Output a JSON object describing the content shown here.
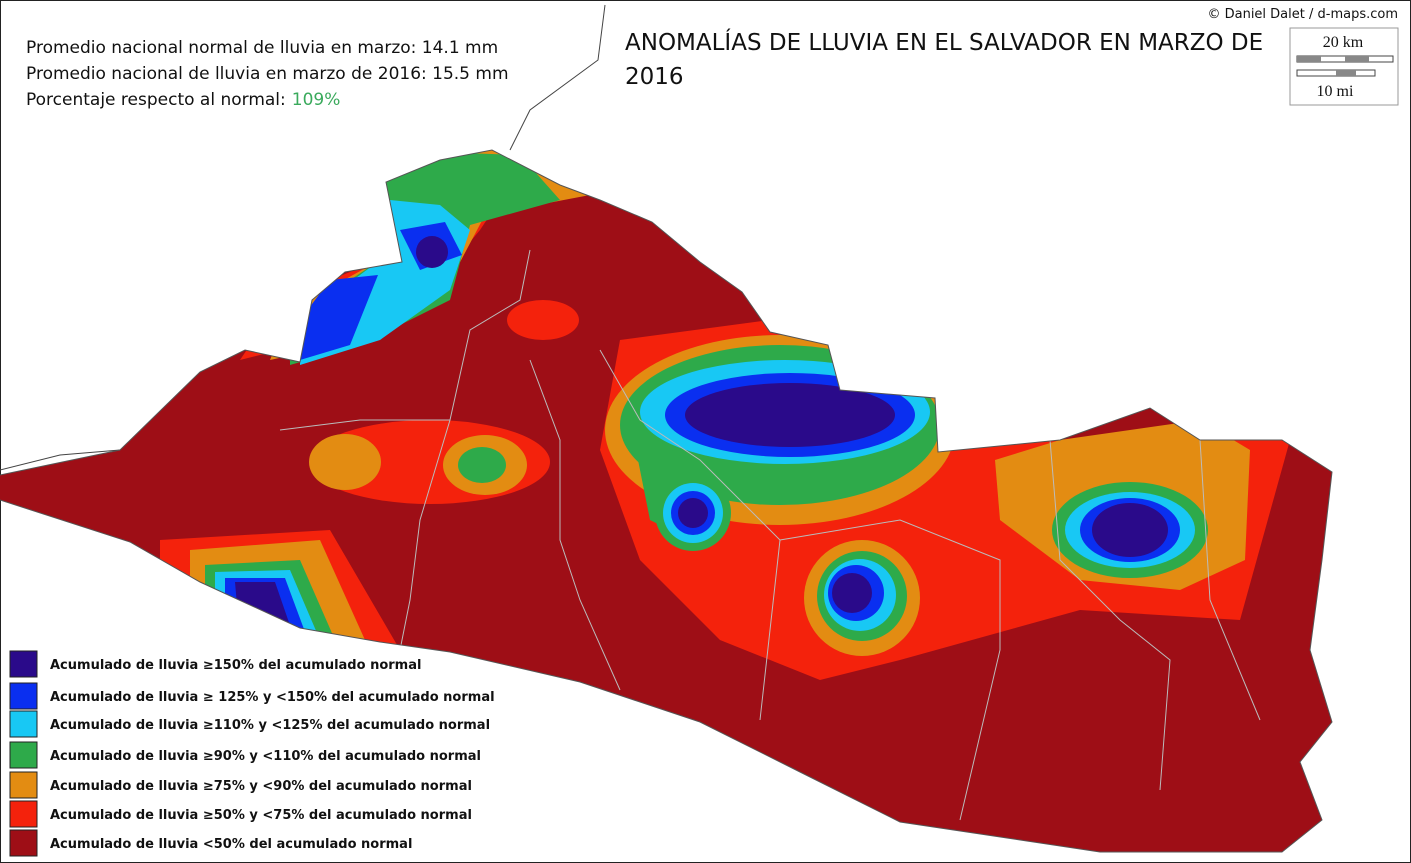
{
  "attribution": "© Daniel Dalet / d-maps.com",
  "title": "ANOMALÍAS DE LLUVIA EN EL SALVADOR EN MARZO DE 2016",
  "stats": [
    {
      "label": "Promedio nacional normal de lluvia en marzo: 14.1 mm"
    },
    {
      "label": "Promedio nacional de lluvia en marzo de 2016: 15.5 mm"
    },
    {
      "label": "Porcentaje respecto al normal:",
      "value": "109%",
      "value_color": "#3aaa5c"
    }
  ],
  "scale": {
    "km": "20 km",
    "mi": "10 mi"
  },
  "legend": [
    {
      "label": "Acumulado de lluvia ≥150% del acumulado normal",
      "color": "#2a0a8a"
    },
    {
      "label": "Acumulado de lluvia ≥ 125% y <150% del acumulado normal",
      "color": "#0a2ff0"
    },
    {
      "label": "Acumulado de lluvia ≥110% y <125% del acumulado normal",
      "color": "#18c8f4"
    },
    {
      "label": "Acumulado de lluvia ≥90% y <110% del acumulado normal",
      "color": "#2eaa4a"
    },
    {
      "label": "Acumulado de lluvia ≥75% y <90% del acumulado normal",
      "color": "#e38c12"
    },
    {
      "label": "Acumulado de lluvia ≥50% y <75% del acumulado normal",
      "color": "#f4220c"
    },
    {
      "label": "Acumulado de lluvia <50% del acumulado normal",
      "color": "#9e0e16"
    }
  ]
}
